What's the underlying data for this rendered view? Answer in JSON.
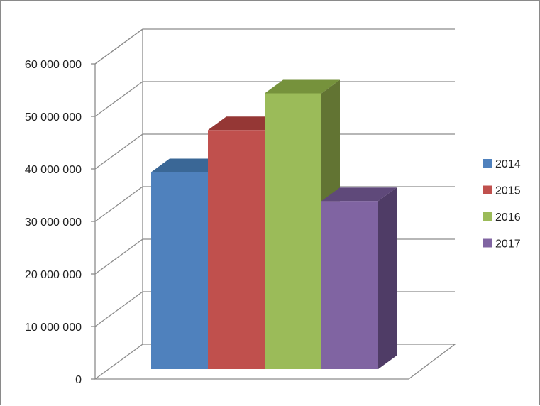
{
  "chart_data": {
    "type": "bar",
    "style": "3d-clustered-column",
    "categories": [
      ""
    ],
    "series": [
      {
        "name": "2014",
        "values": [
          37500000
        ],
        "color": "#4F81BD",
        "top": "#3A6796",
        "side": "#2F5597"
      },
      {
        "name": "2015",
        "values": [
          45500000
        ],
        "color": "#C0504D",
        "top": "#953735",
        "side": "#8B3A38"
      },
      {
        "name": "2016",
        "values": [
          52500000
        ],
        "color": "#9BBB59",
        "top": "#76923C",
        "side": "#627433"
      },
      {
        "name": "2017",
        "values": [
          32000000
        ],
        "color": "#8064A2",
        "top": "#5F497A",
        "side": "#4F3C66"
      }
    ],
    "yticks": [
      "0",
      "10 000 000",
      "20 000 000",
      "30 000 000",
      "40 000 000",
      "50 000 000",
      "60 000 000"
    ],
    "ylim": [
      0,
      60000000
    ],
    "grid": true,
    "legend_position": "right",
    "title": "",
    "xlabel": "",
    "ylabel": ""
  }
}
